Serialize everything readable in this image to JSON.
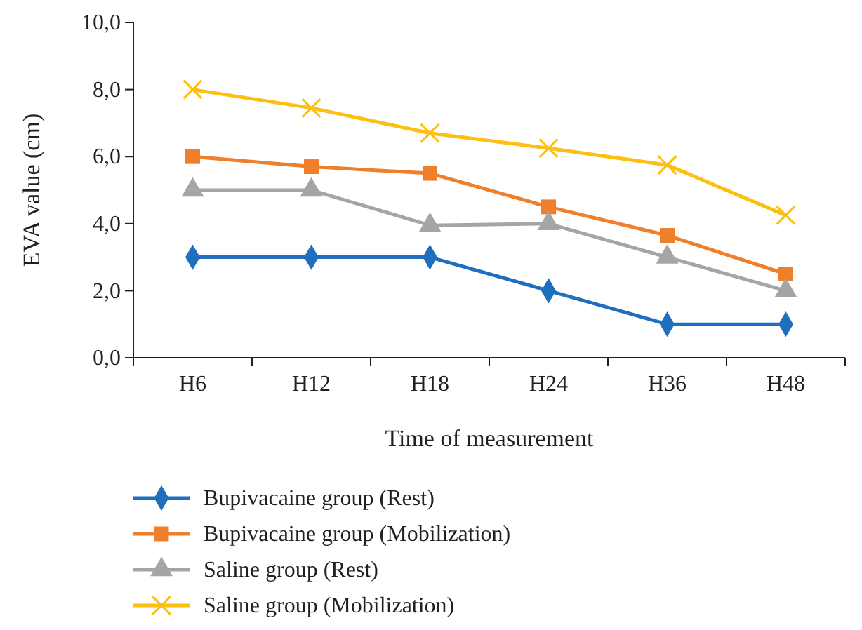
{
  "chart_data": {
    "type": "line",
    "xlabel": "Time of measurement",
    "ylabel": "EVA value (cm)",
    "categories": [
      "H6",
      "H12",
      "H18",
      "H24",
      "H36",
      "H48"
    ],
    "series": [
      {
        "name": "Bupivacaine group (Rest)",
        "color": "#1f6fbf",
        "marker": "diamond",
        "values": [
          3,
          3,
          3,
          2,
          1,
          1
        ]
      },
      {
        "name": "Bupivacaine group (Mobilization)",
        "color": "#f07f2c",
        "marker": "square",
        "values": [
          6,
          5.7,
          5.5,
          4.5,
          3.65,
          2.5
        ]
      },
      {
        "name": "Saline group (Rest)",
        "color": "#a5a5a5",
        "marker": "triangle",
        "values": [
          5,
          5,
          3.95,
          4,
          3,
          2
        ]
      },
      {
        "name": "Saline group (Mobilization)",
        "color": "#fdbf10",
        "marker": "cross",
        "values": [
          8,
          7.45,
          6.7,
          6.25,
          5.75,
          4.25
        ]
      }
    ],
    "ylim": [
      0,
      10
    ],
    "yticks": [
      {
        "value": 0,
        "label": "0,0"
      },
      {
        "value": 2,
        "label": "2,0"
      },
      {
        "value": 4,
        "label": "4,0"
      },
      {
        "value": 6,
        "label": "6,0"
      },
      {
        "value": 8,
        "label": "8,0"
      },
      {
        "value": 10,
        "label": "10,0"
      }
    ],
    "grid": false,
    "legend": "bottom",
    "line_style": "solid"
  }
}
